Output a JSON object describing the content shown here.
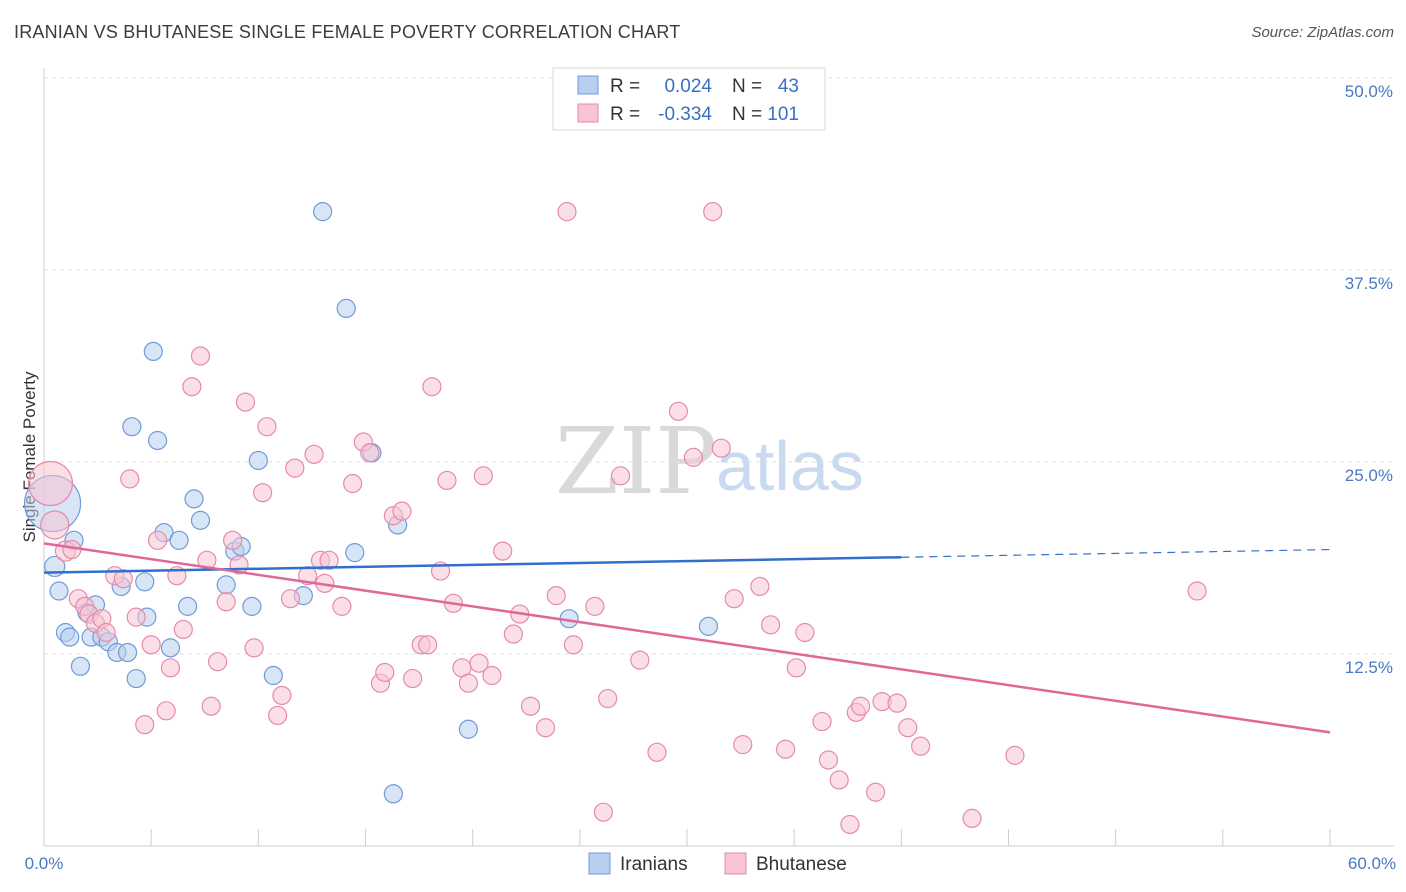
{
  "title": "IRANIAN VS BHUTANESE SINGLE FEMALE POVERTY CORRELATION CHART",
  "source": "Source: ZipAtlas.com",
  "watermark": {
    "zip": "ZIP",
    "atlas": "atlas"
  },
  "colors": {
    "iranians_fill": "#b7cff0",
    "iranians_stroke": "#6f9bd8",
    "iranians_line": "#2f6fcf",
    "bhutanese_fill": "#f7c4d4",
    "bhutanese_stroke": "#e68aa9",
    "bhutanese_line": "#e0679a",
    "tick_label": "#4a78c2",
    "grid": "#e2e2e2"
  },
  "legend": {
    "rows": [
      {
        "r_label": "R =",
        "r_value": "0.024",
        "n_label": "N =",
        "n_value": "43"
      },
      {
        "r_label": "R =",
        "r_value": "-0.334",
        "n_label": "N =",
        "n_value": "101"
      }
    ]
  },
  "chart_data": {
    "type": "scatter",
    "title": "IRANIAN VS BHUTANESE SINGLE FEMALE POVERTY CORRELATION CHART",
    "xlabel": "",
    "ylabel": "Single Female Poverty",
    "xlim": [
      0,
      60
    ],
    "ylim": [
      0,
      50
    ],
    "x_tick_labels": [
      "0.0%",
      "60.0%"
    ],
    "y_ticks": [
      12.5,
      25.0,
      37.5,
      50.0
    ],
    "y_tick_labels": [
      "12.5%",
      "25.0%",
      "37.5%",
      "50.0%"
    ],
    "grid": true,
    "legend_position": "bottom-center",
    "series": [
      {
        "name": "Iranians",
        "r": 0.024,
        "n": 43,
        "trend": {
          "x0": 0,
          "y0": 17.8,
          "x1": 40,
          "y1": 18.8,
          "dashed_to_x": 60,
          "dashed_to_y": 19.3
        },
        "points": [
          [
            0.4,
            22.3,
            28
          ],
          [
            0.5,
            18.2,
            10
          ],
          [
            0.7,
            16.6,
            9
          ],
          [
            1.0,
            13.9,
            9
          ],
          [
            1.2,
            13.6,
            9
          ],
          [
            1.4,
            19.9,
            9
          ],
          [
            1.7,
            11.7,
            9
          ],
          [
            2.0,
            15.2,
            9
          ],
          [
            2.4,
            15.7,
            9
          ],
          [
            2.2,
            13.6,
            9
          ],
          [
            2.7,
            13.6,
            9
          ],
          [
            3.0,
            13.3,
            9
          ],
          [
            3.4,
            12.6,
            9
          ],
          [
            3.6,
            16.9,
            9
          ],
          [
            3.9,
            12.6,
            9
          ],
          [
            4.1,
            27.3,
            9
          ],
          [
            4.3,
            10.9,
            9
          ],
          [
            4.7,
            17.2,
            9
          ],
          [
            4.8,
            14.9,
            9
          ],
          [
            5.1,
            32.2,
            9
          ],
          [
            5.3,
            26.4,
            9
          ],
          [
            5.6,
            20.4,
            9
          ],
          [
            5.9,
            12.9,
            9
          ],
          [
            6.3,
            19.9,
            9
          ],
          [
            6.7,
            15.6,
            9
          ],
          [
            7.0,
            22.6,
            9
          ],
          [
            7.3,
            21.2,
            9
          ],
          [
            8.5,
            17.0,
            9
          ],
          [
            8.9,
            19.2,
            9
          ],
          [
            9.2,
            19.5,
            9
          ],
          [
            9.7,
            15.6,
            9
          ],
          [
            10.7,
            11.1,
            9
          ],
          [
            10.0,
            25.1,
            9
          ],
          [
            12.1,
            16.3,
            9
          ],
          [
            13.0,
            41.3,
            9
          ],
          [
            14.1,
            35.0,
            9
          ],
          [
            14.5,
            19.1,
            9
          ],
          [
            15.3,
            25.6,
            9
          ],
          [
            16.3,
            3.4,
            9
          ],
          [
            16.5,
            20.9,
            9
          ],
          [
            19.8,
            7.6,
            9
          ],
          [
            24.5,
            14.8,
            9
          ],
          [
            31.0,
            14.3,
            9
          ]
        ]
      },
      {
        "name": "Bhutanese",
        "r": -0.334,
        "n": 101,
        "trend": {
          "x0": 0,
          "y0": 19.7,
          "x1": 60,
          "y1": 7.4
        },
        "points": [
          [
            0.3,
            23.6,
            22
          ],
          [
            0.5,
            20.9,
            14
          ],
          [
            1.0,
            19.2,
            10
          ],
          [
            1.3,
            19.3,
            9
          ],
          [
            1.6,
            16.1,
            9
          ],
          [
            1.9,
            15.6,
            9
          ],
          [
            2.1,
            15.1,
            9
          ],
          [
            2.4,
            14.5,
            9
          ],
          [
            2.7,
            14.8,
            9
          ],
          [
            2.9,
            13.9,
            9
          ],
          [
            3.3,
            17.6,
            9
          ],
          [
            3.7,
            17.4,
            9
          ],
          [
            4.0,
            23.9,
            9
          ],
          [
            4.3,
            14.9,
            9
          ],
          [
            4.7,
            7.9,
            9
          ],
          [
            5.0,
            13.1,
            9
          ],
          [
            5.3,
            19.9,
            9
          ],
          [
            5.7,
            8.8,
            9
          ],
          [
            5.9,
            11.6,
            9
          ],
          [
            6.2,
            17.6,
            9
          ],
          [
            6.5,
            14.1,
            9
          ],
          [
            6.9,
            29.9,
            9
          ],
          [
            7.3,
            31.9,
            9
          ],
          [
            7.6,
            18.6,
            9
          ],
          [
            7.8,
            9.1,
            9
          ],
          [
            8.1,
            12.0,
            9
          ],
          [
            8.5,
            15.9,
            9
          ],
          [
            8.8,
            19.9,
            9
          ],
          [
            9.1,
            18.3,
            9
          ],
          [
            9.4,
            28.9,
            9
          ],
          [
            9.8,
            12.9,
            9
          ],
          [
            10.2,
            23.0,
            9
          ],
          [
            10.4,
            27.3,
            9
          ],
          [
            10.9,
            8.5,
            9
          ],
          [
            11.1,
            9.8,
            9
          ],
          [
            11.5,
            16.1,
            9
          ],
          [
            11.7,
            24.6,
            9
          ],
          [
            12.3,
            17.6,
            9
          ],
          [
            12.6,
            25.5,
            9
          ],
          [
            12.9,
            18.6,
            9
          ],
          [
            13.1,
            17.1,
            9
          ],
          [
            13.3,
            18.6,
            9
          ],
          [
            13.9,
            15.6,
            9
          ],
          [
            14.4,
            23.6,
            9
          ],
          [
            14.9,
            26.3,
            9
          ],
          [
            15.2,
            25.6,
            9
          ],
          [
            15.7,
            10.6,
            9
          ],
          [
            15.9,
            11.3,
            9
          ],
          [
            16.3,
            21.5,
            9
          ],
          [
            16.7,
            21.8,
            9
          ],
          [
            17.2,
            10.9,
            9
          ],
          [
            17.6,
            13.1,
            9
          ],
          [
            17.9,
            13.1,
            9
          ],
          [
            18.1,
            29.9,
            9
          ],
          [
            18.5,
            17.9,
            9
          ],
          [
            18.8,
            23.8,
            9
          ],
          [
            19.1,
            15.8,
            9
          ],
          [
            19.5,
            11.6,
            9
          ],
          [
            19.8,
            10.6,
            9
          ],
          [
            20.3,
            11.9,
            9
          ],
          [
            20.5,
            24.1,
            9
          ],
          [
            20.9,
            11.1,
            9
          ],
          [
            21.4,
            19.2,
            9
          ],
          [
            21.9,
            13.8,
            9
          ],
          [
            22.2,
            15.1,
            9
          ],
          [
            22.7,
            9.1,
            9
          ],
          [
            23.4,
            7.7,
            9
          ],
          [
            23.9,
            16.3,
            9
          ],
          [
            24.4,
            41.3,
            9
          ],
          [
            24.7,
            13.1,
            9
          ],
          [
            25.7,
            15.6,
            9
          ],
          [
            26.1,
            2.2,
            9
          ],
          [
            26.3,
            9.6,
            9
          ],
          [
            26.9,
            24.1,
            9
          ],
          [
            27.8,
            12.1,
            9
          ],
          [
            28.6,
            6.1,
            9
          ],
          [
            29.6,
            28.3,
            9
          ],
          [
            30.3,
            25.3,
            9
          ],
          [
            31.2,
            41.3,
            9
          ],
          [
            31.6,
            25.9,
            9
          ],
          [
            32.2,
            16.1,
            9
          ],
          [
            32.6,
            6.6,
            9
          ],
          [
            33.4,
            16.9,
            9
          ],
          [
            33.9,
            14.4,
            9
          ],
          [
            34.6,
            6.3,
            9
          ],
          [
            35.1,
            11.6,
            9
          ],
          [
            35.5,
            13.9,
            9
          ],
          [
            36.3,
            8.1,
            9
          ],
          [
            36.6,
            5.6,
            9
          ],
          [
            37.1,
            4.3,
            9
          ],
          [
            37.6,
            1.4,
            9
          ],
          [
            37.9,
            8.7,
            9
          ],
          [
            38.1,
            9.1,
            9
          ],
          [
            38.8,
            3.5,
            9
          ],
          [
            39.1,
            9.4,
            9
          ],
          [
            39.8,
            9.3,
            9
          ],
          [
            40.3,
            7.7,
            9
          ],
          [
            40.9,
            6.5,
            9
          ],
          [
            43.3,
            1.8,
            9
          ],
          [
            45.3,
            5.9,
            9
          ],
          [
            53.8,
            16.6,
            9
          ]
        ]
      }
    ]
  }
}
